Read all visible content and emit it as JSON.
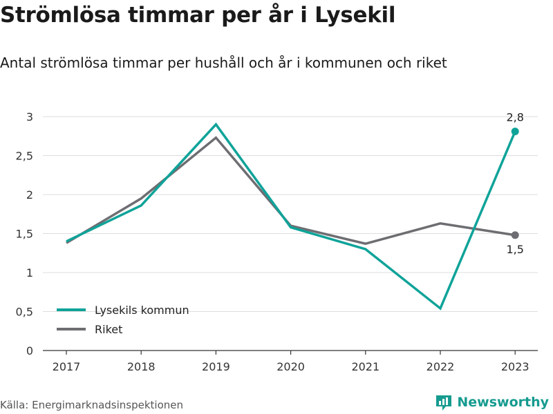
{
  "title": "Strömlösa timmar per år i Lysekil",
  "subtitle": "Antal strömlösa timmar per hushåll och år i kommunen och riket",
  "source": "Källa: Energimarknadsinspektionen",
  "brand": "Newsworthy",
  "colors": {
    "lysekil": "#0fa399",
    "riket": "#6e6d72",
    "grid": "#dddddd",
    "axis": "#333333",
    "brand": "#169b8f"
  },
  "chart_data": {
    "type": "line",
    "x": [
      "2017",
      "2018",
      "2019",
      "2020",
      "2021",
      "2022",
      "2023"
    ],
    "ylim": [
      0,
      3
    ],
    "yticks": [
      0,
      0.5,
      1,
      1.5,
      2,
      2.5,
      3
    ],
    "ytick_labels": [
      "0",
      "0,5",
      "1",
      "1,5",
      "2",
      "2,5",
      "3"
    ],
    "grid": true,
    "legend_position": "bottom-left",
    "series": [
      {
        "name": "Lysekils kommun",
        "color": "#0fa399",
        "values": [
          1.4,
          1.86,
          2.9,
          1.58,
          1.3,
          0.54,
          2.81
        ],
        "end_label": "2,8"
      },
      {
        "name": "Riket",
        "color": "#6e6d72",
        "values": [
          1.38,
          1.95,
          2.73,
          1.6,
          1.37,
          1.63,
          1.48
        ],
        "end_label": "1,5"
      }
    ]
  }
}
